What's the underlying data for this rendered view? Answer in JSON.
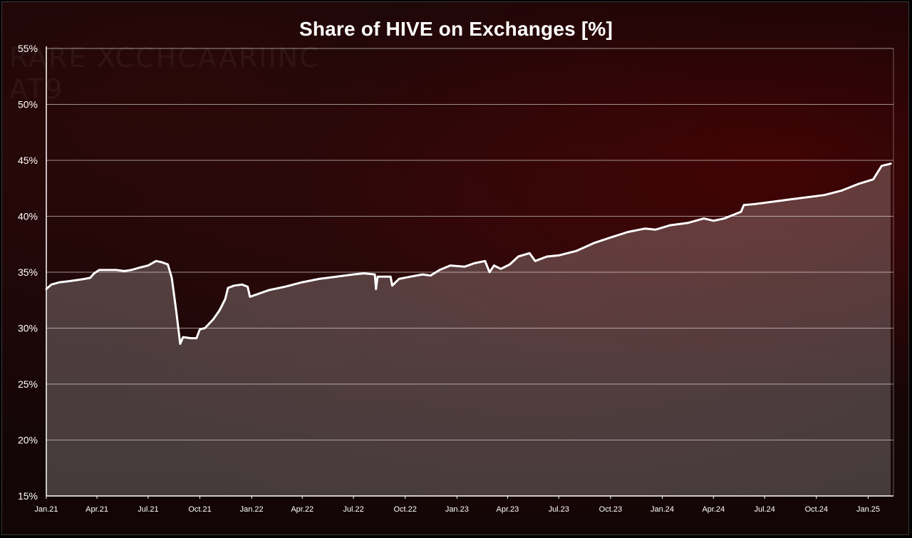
{
  "chart_data": {
    "type": "area",
    "title": "Share of HIVE on Exchanges [%]",
    "xlabel": "",
    "ylabel": "",
    "ylim": [
      15,
      55
    ],
    "yticks": [
      "15%",
      "20%",
      "25%",
      "30%",
      "35%",
      "40%",
      "45%",
      "50%",
      "55%"
    ],
    "ytick_values": [
      15,
      20,
      25,
      30,
      35,
      40,
      45,
      50,
      55
    ],
    "xticks": [
      "Jan.21",
      "Apr.21",
      "Jul.21",
      "Oct.21",
      "Jan.22",
      "Apr.22",
      "Jul.22",
      "Oct.22",
      "Jan.23",
      "Apr.23",
      "Jul.23",
      "Oct.23",
      "Jan.24",
      "Apr.24",
      "Jul.24",
      "Oct.24",
      "Jan.25"
    ],
    "xlim": [
      "2021-01-01",
      "2025-02-15"
    ],
    "grid": "horizontal",
    "series": [
      {
        "color": "#ffffff",
        "points": [
          [
            "2021-01-01",
            33.5
          ],
          [
            "2021-01-10",
            33.9
          ],
          [
            "2021-01-25",
            34.1
          ],
          [
            "2021-02-10",
            34.2
          ],
          [
            "2021-02-25",
            34.3
          ],
          [
            "2021-03-10",
            34.4
          ],
          [
            "2021-03-20",
            34.5
          ],
          [
            "2021-03-27",
            34.9
          ],
          [
            "2021-04-05",
            35.2
          ],
          [
            "2021-04-20",
            35.2
          ],
          [
            "2021-05-05",
            35.2
          ],
          [
            "2021-05-20",
            35.1
          ],
          [
            "2021-06-01",
            35.2
          ],
          [
            "2021-06-15",
            35.4
          ],
          [
            "2021-07-01",
            35.6
          ],
          [
            "2021-07-15",
            36.0
          ],
          [
            "2021-07-25",
            35.9
          ],
          [
            "2021-08-05",
            35.7
          ],
          [
            "2021-08-12",
            34.5
          ],
          [
            "2021-08-20",
            31.5
          ],
          [
            "2021-08-27",
            28.6
          ],
          [
            "2021-09-01",
            29.2
          ],
          [
            "2021-09-15",
            29.1
          ],
          [
            "2021-09-25",
            29.1
          ],
          [
            "2021-10-01",
            29.9
          ],
          [
            "2021-10-10",
            30.0
          ],
          [
            "2021-10-25",
            30.8
          ],
          [
            "2021-11-05",
            31.6
          ],
          [
            "2021-11-15",
            32.6
          ],
          [
            "2021-11-20",
            33.6
          ],
          [
            "2021-12-01",
            33.8
          ],
          [
            "2021-12-15",
            33.9
          ],
          [
            "2021-12-25",
            33.7
          ],
          [
            "2021-12-29",
            32.8
          ],
          [
            "2022-01-15",
            33.1
          ],
          [
            "2022-02-01",
            33.4
          ],
          [
            "2022-03-01",
            33.7
          ],
          [
            "2022-04-01",
            34.1
          ],
          [
            "2022-05-01",
            34.4
          ],
          [
            "2022-06-01",
            34.6
          ],
          [
            "2022-07-01",
            34.8
          ],
          [
            "2022-07-20",
            34.9
          ],
          [
            "2022-08-08",
            34.8
          ],
          [
            "2022-08-10",
            33.5
          ],
          [
            "2022-08-13",
            34.6
          ],
          [
            "2022-09-05",
            34.6
          ],
          [
            "2022-09-08",
            33.8
          ],
          [
            "2022-09-20",
            34.4
          ],
          [
            "2022-10-10",
            34.6
          ],
          [
            "2022-11-01",
            34.8
          ],
          [
            "2022-11-15",
            34.7
          ],
          [
            "2022-12-01",
            35.2
          ],
          [
            "2022-12-20",
            35.6
          ],
          [
            "2023-01-15",
            35.5
          ],
          [
            "2023-02-01",
            35.8
          ],
          [
            "2023-02-20",
            36.0
          ],
          [
            "2023-02-28",
            35.0
          ],
          [
            "2023-03-08",
            35.6
          ],
          [
            "2023-03-20",
            35.3
          ],
          [
            "2023-04-05",
            35.7
          ],
          [
            "2023-04-20",
            36.4
          ],
          [
            "2023-05-10",
            36.7
          ],
          [
            "2023-05-20",
            36.0
          ],
          [
            "2023-06-10",
            36.4
          ],
          [
            "2023-07-01",
            36.5
          ],
          [
            "2023-08-01",
            36.9
          ],
          [
            "2023-09-01",
            37.6
          ],
          [
            "2023-10-01",
            38.1
          ],
          [
            "2023-11-01",
            38.6
          ],
          [
            "2023-12-01",
            38.9
          ],
          [
            "2023-12-20",
            38.8
          ],
          [
            "2024-01-15",
            39.2
          ],
          [
            "2024-02-15",
            39.4
          ],
          [
            "2024-03-15",
            39.8
          ],
          [
            "2024-04-01",
            39.6
          ],
          [
            "2024-04-20",
            39.8
          ],
          [
            "2024-05-10",
            40.2
          ],
          [
            "2024-05-20",
            40.4
          ],
          [
            "2024-05-25",
            41.0
          ],
          [
            "2024-06-15",
            41.1
          ],
          [
            "2024-07-15",
            41.3
          ],
          [
            "2024-08-15",
            41.5
          ],
          [
            "2024-09-15",
            41.7
          ],
          [
            "2024-10-15",
            41.9
          ],
          [
            "2024-11-15",
            42.3
          ],
          [
            "2024-12-15",
            42.9
          ],
          [
            "2025-01-10",
            43.3
          ],
          [
            "2025-01-25",
            44.5
          ],
          [
            "2025-02-10",
            44.7
          ]
        ]
      }
    ],
    "colors": {
      "line": "#ffffff",
      "area_fill": "rgba(255,255,255,0.22)",
      "gridline": "rgba(255,255,255,0.55)",
      "axis": "#ffffff",
      "background": "#160607"
    }
  },
  "watermark": {
    "line1": "RARE XCCHCAARIINC",
    "line2": "AT9"
  }
}
